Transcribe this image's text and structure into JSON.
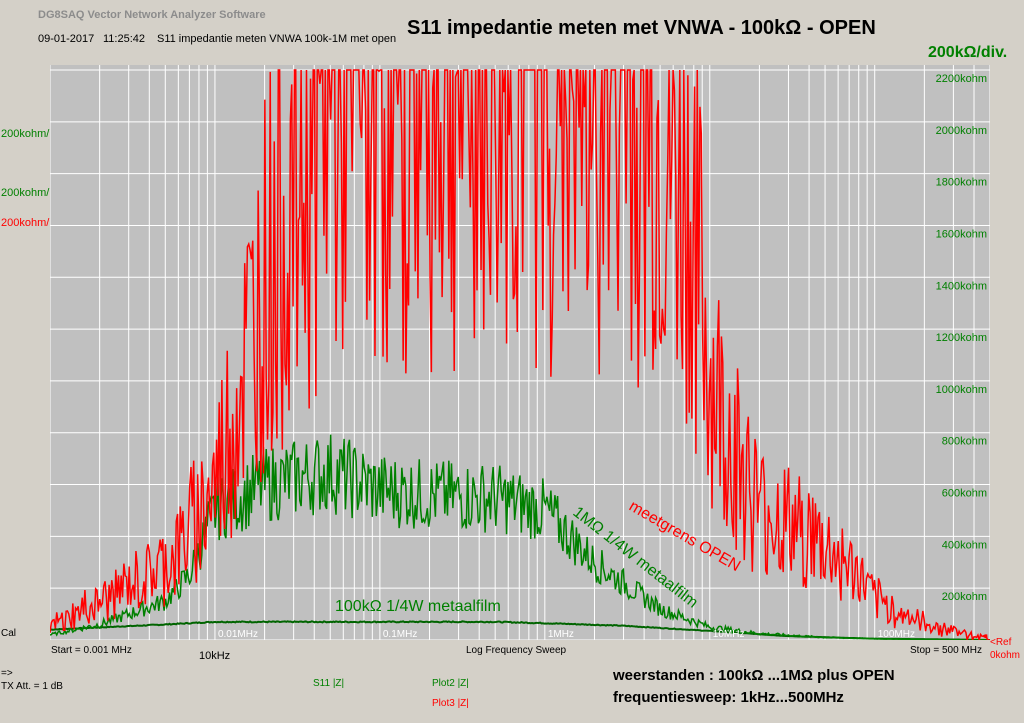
{
  "app": {
    "title": "DG8SAQ Vector Network Analyzer Software",
    "date": "09-01-2017",
    "time": "11:25:42",
    "file_label": "S11 impedantie meten VNWA 100k-1M met open"
  },
  "overlay": {
    "main_title": "S11 impedantie meten met VNWA  -  100kΩ - OPEN",
    "scale_label": "200kΩ/div.",
    "annotation_open": "meetgrens OPEN",
    "annotation_1m": "1MΩ 1/4W metaalfilm",
    "annotation_100k": "100kΩ 1/4W metaalfilm",
    "marker_10k": "10kHz",
    "caption_line1": "weerstanden      :  100kΩ ...1MΩ plus OPEN",
    "caption_line2": "frequentiesweep: 1kHz...500MHz"
  },
  "left_scales": [
    "200kohm/",
    "200kohm/",
    "200kohm/"
  ],
  "colors": {
    "plot_bg": "#c0c0c0",
    "grid": "#ffffff",
    "red": "#ff0000",
    "green": "#008000",
    "dark_green": "#006400"
  },
  "status": {
    "cal": "Cal",
    "start": "Start = 0.001 MHz",
    "sweep": "Log Frequency Sweep",
    "stop": "Stop = 500 MHz",
    "ref_label": "<Ref",
    "ref_value": "0kohm",
    "ref_marker": "◄",
    "tx_arrow": "=>",
    "tx_att": "TX Att.  = 1 dB",
    "s11": "S11   |Z|",
    "plot2": "Plot2 |Z|",
    "plot3": "Plot3 |Z|"
  },
  "chart_data": {
    "type": "line",
    "x_axis": {
      "scale": "log",
      "xlim_mhz": [
        0.001,
        500
      ],
      "tick_labels": [
        {
          "x": 0.01,
          "label": "0.01MHz"
        },
        {
          "x": 0.1,
          "label": "0.1MHz"
        },
        {
          "x": 1,
          "label": "1MHz"
        },
        {
          "x": 10,
          "label": "10MHz"
        },
        {
          "x": 100,
          "label": "100MHz"
        }
      ]
    },
    "y_axis": {
      "ylim_kohm": [
        0,
        2200
      ],
      "tick_labels": [
        {
          "y": 2200,
          "label": "2200kohm"
        },
        {
          "y": 2000,
          "label": "2000kohm"
        },
        {
          "y": 1800,
          "label": "1800kohm"
        },
        {
          "y": 1600,
          "label": "1600kohm"
        },
        {
          "y": 1400,
          "label": "1400kohm"
        },
        {
          "y": 1200,
          "label": "1200kohm"
        },
        {
          "y": 1000,
          "label": "1000kohm"
        },
        {
          "y": 800,
          "label": "800kohm"
        },
        {
          "y": 600,
          "label": "600kohm"
        },
        {
          "y": 400,
          "label": "400kohm"
        },
        {
          "y": 200,
          "label": "200kohm"
        },
        {
          "y": 0,
          "label": "0kohm"
        }
      ]
    },
    "grid": true,
    "series": [
      {
        "name": "meetgrens OPEN",
        "color": "#ff0000",
        "x_mhz": [
          0.001,
          0.002,
          0.004,
          0.006,
          0.01,
          0.02,
          0.05,
          0.1,
          0.3,
          1,
          3,
          8,
          10,
          15,
          20,
          30,
          40,
          50,
          80,
          100,
          150,
          200,
          300,
          500
        ],
        "y_kohm": [
          50,
          150,
          250,
          350,
          600,
          1400,
          2200,
          2200,
          2200,
          2200,
          2200,
          1600,
          1000,
          700,
          500,
          450,
          400,
          350,
          250,
          150,
          100,
          60,
          40,
          0
        ]
      },
      {
        "name": "1MΩ 1/4W metaalfilm",
        "color": "#008000",
        "x_mhz": [
          0.001,
          0.002,
          0.005,
          0.007,
          0.01,
          0.02,
          0.05,
          0.1,
          0.2,
          0.5,
          1,
          2,
          5,
          10,
          20,
          50,
          100,
          200,
          500
        ],
        "y_kohm": [
          20,
          60,
          150,
          250,
          500,
          600,
          650,
          580,
          560,
          550,
          500,
          300,
          120,
          50,
          25,
          10,
          5,
          2,
          0
        ]
      },
      {
        "name": "100kΩ 1/4W metaalfilm",
        "color": "#006400",
        "x_mhz": [
          0.001,
          0.005,
          0.01,
          0.1,
          0.5,
          1,
          3,
          10,
          30,
          100,
          300,
          500
        ],
        "y_kohm": [
          40,
          60,
          70,
          70,
          70,
          65,
          55,
          35,
          15,
          5,
          2,
          0
        ]
      }
    ]
  }
}
